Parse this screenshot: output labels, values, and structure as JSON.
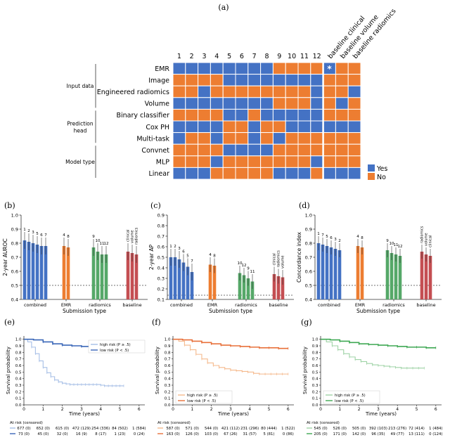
{
  "figure": {
    "panel_labels": [
      "(a)",
      "(b)",
      "(c)",
      "(d)",
      "(e)",
      "(f)",
      "(g)"
    ]
  },
  "colors": {
    "yes": "#4472c4",
    "no": "#ed7d31",
    "combined": "#4472c4",
    "emr": "#ed7d31",
    "radiomics": "#55a868",
    "baseline": "#c44e52",
    "km_blue_high": "#a6bfe6",
    "km_blue_low": "#3a67b8",
    "km_orange_high": "#f5b98c",
    "km_orange_low": "#e8703a",
    "km_green_high": "#9fd3a6",
    "km_green_low": "#3fa853"
  },
  "chart_data": [
    {
      "panel": "(a)",
      "type": "heatmap",
      "columns": [
        "1",
        "2",
        "3",
        "4",
        "5",
        "6",
        "7",
        "8",
        "9",
        "10",
        "11",
        "12",
        "baseline clinical",
        "baseline volume",
        "baseline radiomics"
      ],
      "rows": [
        "EMR",
        "Image",
        "Engineered radiomics",
        "Volume",
        "Binary classifier",
        "Cox PH",
        "Multi-task",
        "Convnet",
        "MLP",
        "Linear"
      ],
      "values": [
        [
          1,
          1,
          1,
          1,
          1,
          1,
          1,
          1,
          0,
          0,
          0,
          0,
          1,
          0,
          0
        ],
        [
          0,
          0,
          0,
          0,
          1,
          1,
          1,
          1,
          1,
          1,
          1,
          1,
          0,
          0,
          0
        ],
        [
          0,
          0,
          1,
          0,
          0,
          0,
          0,
          0,
          0,
          0,
          0,
          1,
          0,
          0,
          1
        ],
        [
          1,
          1,
          1,
          1,
          1,
          1,
          1,
          1,
          0,
          0,
          0,
          1,
          0,
          1,
          0
        ],
        [
          0,
          0,
          0,
          0,
          1,
          1,
          0,
          1,
          1,
          1,
          1,
          1,
          0,
          0,
          0
        ],
        [
          1,
          1,
          1,
          1,
          0,
          0,
          1,
          0,
          0,
          1,
          1,
          1,
          1,
          1,
          1
        ],
        [
          1,
          0,
          0,
          1,
          0,
          0,
          1,
          0,
          1,
          0,
          0,
          0,
          0,
          0,
          0
        ],
        [
          0,
          0,
          0,
          0,
          1,
          1,
          1,
          1,
          0,
          0,
          0,
          0,
          0,
          0,
          0
        ],
        [
          0,
          0,
          0,
          1,
          0,
          0,
          0,
          0,
          0,
          0,
          0,
          1,
          0,
          0,
          0
        ],
        [
          1,
          1,
          1,
          0,
          0,
          0,
          0,
          0,
          1,
          1,
          1,
          0,
          1,
          1,
          1
        ]
      ],
      "star_row": 0,
      "star_col": 12,
      "star_label": "*",
      "groups": [
        {
          "label": "Input data",
          "rows": [
            0,
            3
          ]
        },
        {
          "label": "Prediction head",
          "lines": [
            "Prediction",
            "head"
          ],
          "rows": [
            4,
            6
          ]
        },
        {
          "label": "Model type",
          "rows": [
            7,
            9
          ]
        }
      ],
      "legend": [
        "Yes",
        "No"
      ]
    },
    {
      "panel": "(b)",
      "type": "bar",
      "ylabel": "2-year AUROC",
      "xlabel": "Submission type",
      "ylim": [
        0.4,
        1.0
      ],
      "yticks": [
        "0.4",
        "0.5",
        "0.6",
        "0.7",
        "0.8",
        "0.9",
        "1.0"
      ],
      "chance": 0.5,
      "groups": [
        {
          "name": "combined",
          "color_key": "combined",
          "values": [
            0.82,
            0.81,
            0.8,
            0.79,
            0.78,
            0.78
          ],
          "err": [
            0.06,
            0.06,
            0.06,
            0.06,
            0.06,
            0.06
          ],
          "labels": [
            "1",
            "2",
            "3",
            "5",
            "6",
            "7"
          ],
          "rotate": false
        },
        {
          "name": "EMR",
          "color_key": "emr",
          "values": [
            0.78,
            0.77
          ],
          "err": [
            0.06,
            0.06
          ],
          "labels": [
            "4",
            "8"
          ],
          "rotate": false
        },
        {
          "name": "radiomics",
          "color_key": "radiomics",
          "values": [
            0.77,
            0.74,
            0.72,
            0.72
          ],
          "err": [
            0.06,
            0.06,
            0.06,
            0.06
          ],
          "labels": [
            "9",
            "10",
            "11",
            "12"
          ],
          "rotate": false
        },
        {
          "name": "baseline",
          "color_key": "baseline",
          "values": [
            0.74,
            0.73,
            0.72
          ],
          "err": [
            0.06,
            0.06,
            0.06
          ],
          "labels": [
            "clinical",
            "volume",
            "radiomics"
          ],
          "rotate": true
        }
      ]
    },
    {
      "panel": "(c)",
      "type": "bar",
      "ylabel": "2-year AP",
      "xlabel": "Submission type",
      "ylim": [
        0.1,
        0.9
      ],
      "yticks": [
        "0.1",
        "0.2",
        "0.3",
        "0.4",
        "0.5",
        "0.6",
        "0.7",
        "0.8",
        "0.9"
      ],
      "chance": 0.14,
      "groups": [
        {
          "name": "combined",
          "color_key": "combined",
          "values": [
            0.5,
            0.5,
            0.48,
            0.45,
            0.41,
            0.36
          ],
          "err": [
            0.08,
            0.08,
            0.08,
            0.08,
            0.08,
            0.08
          ],
          "labels": [
            "1",
            "2",
            "3",
            "6",
            "5",
            "7"
          ],
          "rotate": false
        },
        {
          "name": "EMR",
          "color_key": "emr",
          "values": [
            0.43,
            0.42
          ],
          "err": [
            0.07,
            0.07
          ],
          "labels": [
            "4",
            "8"
          ],
          "rotate": false
        },
        {
          "name": "radiomics",
          "color_key": "radiomics",
          "values": [
            0.35,
            0.33,
            0.3,
            0.27
          ],
          "err": [
            0.07,
            0.07,
            0.07,
            0.07
          ],
          "labels": [
            "10",
            "12",
            "9",
            "11"
          ],
          "rotate": false
        },
        {
          "name": "baseline",
          "color_key": "baseline",
          "values": [
            0.34,
            0.32,
            0.31
          ],
          "err": [
            0.07,
            0.07,
            0.07
          ],
          "labels": [
            "clinical",
            "radiomics",
            "volume"
          ],
          "rotate": true
        }
      ]
    },
    {
      "panel": "(d)",
      "type": "bar",
      "ylabel": "Concordance index",
      "xlabel": "Submission type",
      "ylim": [
        0.4,
        1.0
      ],
      "yticks": [
        "0.4",
        "0.5",
        "0.6",
        "0.7",
        "0.8",
        "0.9",
        "1.0"
      ],
      "chance": 0.5,
      "groups": [
        {
          "name": "combined",
          "color_key": "combined",
          "values": [
            0.8,
            0.79,
            0.78,
            0.77,
            0.76,
            0.75
          ],
          "err": [
            0.05,
            0.05,
            0.05,
            0.05,
            0.05,
            0.05
          ],
          "labels": [
            "1",
            "7",
            "5",
            "6",
            "3",
            "2"
          ],
          "rotate": false
        },
        {
          "name": "EMR",
          "color_key": "emr",
          "values": [
            0.78,
            0.77
          ],
          "err": [
            0.05,
            0.05
          ],
          "labels": [
            "4",
            "8"
          ],
          "rotate": false
        },
        {
          "name": "radiomics",
          "color_key": "radiomics",
          "values": [
            0.75,
            0.73,
            0.72,
            0.71
          ],
          "err": [
            0.05,
            0.05,
            0.05,
            0.05
          ],
          "labels": [
            "9",
            "10",
            "11",
            "12"
          ],
          "rotate": false
        },
        {
          "name": "baseline",
          "color_key": "baseline",
          "values": [
            0.74,
            0.72,
            0.71
          ],
          "err": [
            0.05,
            0.05,
            0.05
          ],
          "labels": [
            "radiomics",
            "volume",
            "clinical"
          ],
          "rotate": true
        }
      ]
    },
    {
      "panel": "(e)",
      "type": "line",
      "xlabel": "Time (years)",
      "ylabel": "Survival probability",
      "xlim": [
        0,
        6.3
      ],
      "ylim": [
        0.0,
        1.05
      ],
      "xticks": [
        "0",
        "1",
        "2",
        "3",
        "4",
        "5",
        "6"
      ],
      "yticks": [
        "0.0",
        "0.1",
        "0.2",
        "0.3",
        "0.4",
        "0.5",
        "0.6",
        "0.7",
        "0.8",
        "0.9",
        "1.0"
      ],
      "legend_position": "top-right",
      "series": [
        {
          "name": "high risk (P ≥ .5)",
          "color_key": "km_blue_high",
          "x": [
            0,
            0.2,
            0.4,
            0.6,
            0.8,
            1.0,
            1.2,
            1.4,
            1.6,
            1.8,
            2.0,
            2.2,
            2.4,
            2.6,
            2.8,
            3.0,
            3.2,
            3.4,
            3.6,
            3.8,
            4.0,
            4.2,
            4.4,
            4.6,
            4.8,
            5.0,
            5.2
          ],
          "y": [
            1.0,
            0.96,
            0.88,
            0.78,
            0.67,
            0.57,
            0.49,
            0.43,
            0.38,
            0.35,
            0.33,
            0.32,
            0.31,
            0.31,
            0.31,
            0.31,
            0.31,
            0.31,
            0.31,
            0.31,
            0.3,
            0.29,
            0.29,
            0.29,
            0.29,
            0.29,
            0.29
          ]
        },
        {
          "name": "low risk (P < .5)",
          "color_key": "km_blue_low",
          "x": [
            0,
            0.5,
            1.0,
            1.5,
            2.0,
            2.5,
            3.0,
            3.5,
            4.0,
            4.5,
            5.0,
            5.5,
            6.0
          ],
          "y": [
            1.0,
            0.99,
            0.96,
            0.93,
            0.91,
            0.9,
            0.89,
            0.88,
            0.87,
            0.86,
            0.85,
            0.84,
            0.84
          ]
        }
      ],
      "at_risk_header": "At risk (censored)",
      "at_risk": [
        [
          "677 (0)",
          "652 (0)",
          "615 (0)",
          "472 (129)",
          "254 (336)",
          "84 (502)",
          "1 (584)"
        ],
        [
          "73 (0)",
          "45 (0)",
          "32 (0)",
          "16 (9)",
          "8 (17)",
          "1 (23)",
          "0 (24)"
        ]
      ]
    },
    {
      "panel": "(f)",
      "type": "line",
      "xlabel": "Time (years)",
      "ylabel": "Survival probability",
      "xlim": [
        0,
        6.3
      ],
      "ylim": [
        0.0,
        1.05
      ],
      "xticks": [
        "0",
        "1",
        "2",
        "3",
        "4",
        "5",
        "6"
      ],
      "yticks": [
        "0.0",
        "0.1",
        "0.2",
        "0.3",
        "0.4",
        "0.5",
        "0.6",
        "0.7",
        "0.8",
        "0.9",
        "1.0"
      ],
      "legend_position": "bottom-left",
      "series": [
        {
          "name": "high risk (P ≥ .5)",
          "color_key": "km_orange_high",
          "x": [
            0,
            0.3,
            0.6,
            0.9,
            1.2,
            1.5,
            1.8,
            2.1,
            2.4,
            2.7,
            3.0,
            3.3,
            3.6,
            3.9,
            4.2,
            4.5,
            4.8,
            5.1,
            5.4,
            5.7,
            6.0
          ],
          "y": [
            1.0,
            0.97,
            0.91,
            0.84,
            0.77,
            0.7,
            0.64,
            0.6,
            0.57,
            0.55,
            0.53,
            0.52,
            0.51,
            0.5,
            0.48,
            0.47,
            0.47,
            0.47,
            0.47,
            0.47,
            0.47
          ]
        },
        {
          "name": "low risk (P < .5)",
          "color_key": "km_orange_low",
          "x": [
            0,
            0.5,
            1.0,
            1.5,
            2.0,
            2.5,
            3.0,
            3.5,
            4.0,
            4.5,
            5.0,
            5.5,
            6.0
          ],
          "y": [
            1.0,
            0.99,
            0.97,
            0.95,
            0.93,
            0.91,
            0.9,
            0.89,
            0.88,
            0.87,
            0.87,
            0.86,
            0.86
          ]
        }
      ],
      "at_risk_header": "At risk (censored)",
      "at_risk": [
        [
          "587 (0)",
          "571 (0)",
          "544 (0)",
          "421 (112)",
          "231 (296)",
          "80 (444)",
          "1 (522)"
        ],
        [
          "163 (0)",
          "126 (0)",
          "103 (0)",
          "67 (26)",
          "31 (57)",
          "5 (81)",
          "0 (86)"
        ]
      ]
    },
    {
      "panel": "(g)",
      "type": "line",
      "xlabel": "Time (years)",
      "ylabel": "Survival probability",
      "xlim": [
        0,
        6.3
      ],
      "ylim": [
        0.0,
        1.05
      ],
      "xticks": [
        "0",
        "1",
        "2",
        "3",
        "4",
        "5",
        "6"
      ],
      "yticks": [
        "0.0",
        "0.1",
        "0.2",
        "0.3",
        "0.4",
        "0.5",
        "0.6",
        "0.7",
        "0.8",
        "0.9",
        "1.0"
      ],
      "legend_position": "bottom-left",
      "series": [
        {
          "name": "high risk (P ≥ .5)",
          "color_key": "km_green_high",
          "x": [
            0,
            0.3,
            0.6,
            0.9,
            1.2,
            1.5,
            1.8,
            2.1,
            2.4,
            2.7,
            3.0,
            3.3,
            3.6,
            3.9,
            4.2,
            4.5,
            4.8,
            5.1,
            5.4
          ],
          "y": [
            1.0,
            0.96,
            0.9,
            0.84,
            0.78,
            0.73,
            0.69,
            0.66,
            0.63,
            0.61,
            0.6,
            0.59,
            0.58,
            0.57,
            0.56,
            0.56,
            0.56,
            0.56,
            0.56
          ]
        },
        {
          "name": "low risk (P < .5)",
          "color_key": "km_green_low",
          "x": [
            0,
            0.5,
            1.0,
            1.5,
            2.0,
            2.5,
            3.0,
            3.5,
            4.0,
            4.5,
            5.0,
            5.5,
            6.0
          ],
          "y": [
            1.0,
            0.99,
            0.97,
            0.95,
            0.93,
            0.92,
            0.91,
            0.9,
            0.89,
            0.88,
            0.88,
            0.87,
            0.87
          ]
        }
      ],
      "at_risk_header": "At risk (censored)",
      "at_risk": [
        [
          "545 (0)",
          "526 (0)",
          "505 (0)",
          "392 (103)",
          "213 (276)",
          "72 (414)",
          "1 (484)"
        ],
        [
          "205 (0)",
          "171 (0)",
          "142 (0)",
          "96 (35)",
          "49 (77)",
          "13 (111)",
          "0 (124)"
        ]
      ]
    }
  ]
}
